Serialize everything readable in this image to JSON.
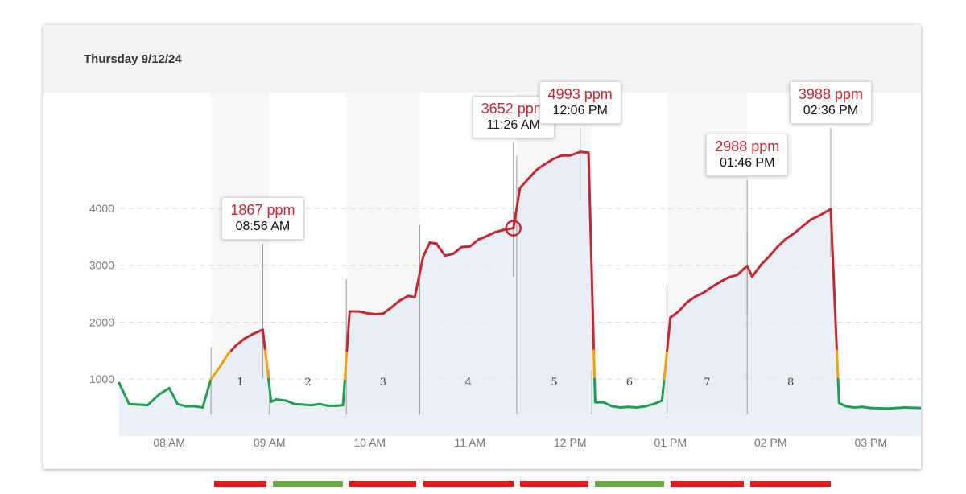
{
  "card": {
    "title": "Thursday 9/12/24"
  },
  "colors": {
    "good": "#1e9e55",
    "moderate": "#f0a30a",
    "bad": "#c62833",
    "area": "#e3ebf1",
    "band": "#f5f7f9",
    "grid": "#d9d9d9",
    "axis_text": "#777777",
    "bar_red": "#e8151b",
    "bar_green": "#6aaa45"
  },
  "chart_data": {
    "type": "area",
    "y_unit": "ppm",
    "ylim": [
      0,
      5300
    ],
    "yticks": [
      {
        "value": 1000,
        "label": "1000"
      },
      {
        "value": 2000,
        "label": "2000"
      },
      {
        "value": 3000,
        "label": "3000"
      },
      {
        "value": 4000,
        "label": "4000"
      }
    ],
    "xlim": [
      "07:30",
      "15:30"
    ],
    "xticks": [
      {
        "time": "08:00",
        "label": "08 AM"
      },
      {
        "time": "09:00",
        "label": "09 AM"
      },
      {
        "time": "10:00",
        "label": "10 AM"
      },
      {
        "time": "11:00",
        "label": "11 AM"
      },
      {
        "time": "12:00",
        "label": "12 PM"
      },
      {
        "time": "13:00",
        "label": "01 PM"
      },
      {
        "time": "14:00",
        "label": "02 PM"
      },
      {
        "time": "15:00",
        "label": "03 PM"
      }
    ],
    "grid": true,
    "thresholds": {
      "moderate": 1000,
      "bad": 1500
    },
    "series": [
      {
        "points": [
          [
            "07:30",
            930
          ],
          [
            "07:36",
            560
          ],
          [
            "07:47",
            540
          ],
          [
            "07:54",
            730
          ],
          [
            "08:00",
            840
          ],
          [
            "08:05",
            560
          ],
          [
            "08:10",
            520
          ],
          [
            "08:15",
            520
          ],
          [
            "08:20",
            500
          ],
          [
            "08:25",
            1000
          ],
          [
            "08:30",
            1200
          ],
          [
            "08:35",
            1430
          ],
          [
            "08:40",
            1590
          ],
          [
            "08:45",
            1710
          ],
          [
            "08:50",
            1790
          ],
          [
            "08:56",
            1867
          ],
          [
            "09:01",
            600
          ],
          [
            "09:04",
            640
          ],
          [
            "09:10",
            620
          ],
          [
            "09:15",
            560
          ],
          [
            "09:20",
            550
          ],
          [
            "09:25",
            540
          ],
          [
            "09:30",
            560
          ],
          [
            "09:35",
            530
          ],
          [
            "09:40",
            530
          ],
          [
            "09:44",
            540
          ],
          [
            "09:48",
            2190
          ],
          [
            "09:53",
            2190
          ],
          [
            "09:58",
            2160
          ],
          [
            "10:03",
            2140
          ],
          [
            "10:08",
            2150
          ],
          [
            "10:13",
            2260
          ],
          [
            "10:18",
            2380
          ],
          [
            "10:23",
            2460
          ],
          [
            "10:27",
            2440
          ],
          [
            "10:32",
            3150
          ],
          [
            "10:36",
            3400
          ],
          [
            "10:40",
            3380
          ],
          [
            "10:45",
            3170
          ],
          [
            "10:50",
            3200
          ],
          [
            "10:55",
            3320
          ],
          [
            "11:00",
            3330
          ],
          [
            "11:05",
            3450
          ],
          [
            "11:10",
            3510
          ],
          [
            "11:15",
            3580
          ],
          [
            "11:20",
            3620
          ],
          [
            "11:26",
            3652
          ],
          [
            "11:30",
            4360
          ],
          [
            "11:35",
            4520
          ],
          [
            "11:40",
            4680
          ],
          [
            "11:45",
            4780
          ],
          [
            "11:50",
            4870
          ],
          [
            "11:55",
            4930
          ],
          [
            "12:00",
            4930
          ],
          [
            "12:06",
            4993
          ],
          [
            "12:11",
            4980
          ],
          [
            "12:15",
            590
          ],
          [
            "12:20",
            590
          ],
          [
            "12:25",
            520
          ],
          [
            "12:30",
            500
          ],
          [
            "12:35",
            510
          ],
          [
            "12:40",
            500
          ],
          [
            "12:45",
            520
          ],
          [
            "12:50",
            560
          ],
          [
            "12:55",
            620
          ],
          [
            "13:00",
            2080
          ],
          [
            "13:05",
            2190
          ],
          [
            "13:10",
            2350
          ],
          [
            "13:15",
            2450
          ],
          [
            "13:20",
            2520
          ],
          [
            "13:25",
            2620
          ],
          [
            "13:30",
            2710
          ],
          [
            "13:35",
            2790
          ],
          [
            "13:40",
            2830
          ],
          [
            "13:46",
            2988
          ],
          [
            "13:49",
            2800
          ],
          [
            "13:54",
            3000
          ],
          [
            "13:59",
            3150
          ],
          [
            "14:04",
            3320
          ],
          [
            "14:09",
            3460
          ],
          [
            "14:14",
            3560
          ],
          [
            "14:19",
            3680
          ],
          [
            "14:24",
            3800
          ],
          [
            "14:29",
            3870
          ],
          [
            "14:36",
            3988
          ],
          [
            "14:41",
            580
          ],
          [
            "14:45",
            520
          ],
          [
            "14:50",
            500
          ],
          [
            "14:55",
            510
          ],
          [
            "15:00",
            490
          ],
          [
            "15:10",
            480
          ],
          [
            "15:20",
            500
          ],
          [
            "15:30",
            490
          ]
        ]
      }
    ],
    "periods": [
      {
        "label": "1",
        "start": "08:25",
        "end": "09:00",
        "status": "bad"
      },
      {
        "label": "2",
        "start": "09:00",
        "end": "09:46",
        "status": "good"
      },
      {
        "label": "3",
        "start": "09:46",
        "end": "10:30",
        "status": "bad"
      },
      {
        "label": "4",
        "start": "10:30",
        "end": "11:28",
        "status": "bad"
      },
      {
        "label": "5",
        "start": "11:28",
        "end": "12:13",
        "status": "bad"
      },
      {
        "label": "6",
        "start": "12:13",
        "end": "12:58",
        "status": "good"
      },
      {
        "label": "7",
        "start": "12:58",
        "end": "13:46",
        "status": "bad"
      },
      {
        "label": "8",
        "start": "13:46",
        "end": "14:38",
        "status": "bad"
      }
    ],
    "callouts": [
      {
        "value_label": "1867 ppm",
        "time_label": "08:56 AM",
        "time": "08:56",
        "value": 1867
      },
      {
        "value_label": "3652 ppm",
        "time_label": "11:26 AM",
        "time": "11:26",
        "value": 3652
      },
      {
        "value_label": "4993 ppm",
        "time_label": "12:06 PM",
        "time": "12:06",
        "value": 4993
      },
      {
        "value_label": "2988 ppm",
        "time_label": "01:46 PM",
        "time": "13:46",
        "value": 2988
      },
      {
        "value_label": "3988 ppm",
        "time_label": "02:36 PM",
        "time": "14:36",
        "value": 3988
      }
    ],
    "highlighted_point": {
      "time": "11:26",
      "value": 3652
    }
  }
}
